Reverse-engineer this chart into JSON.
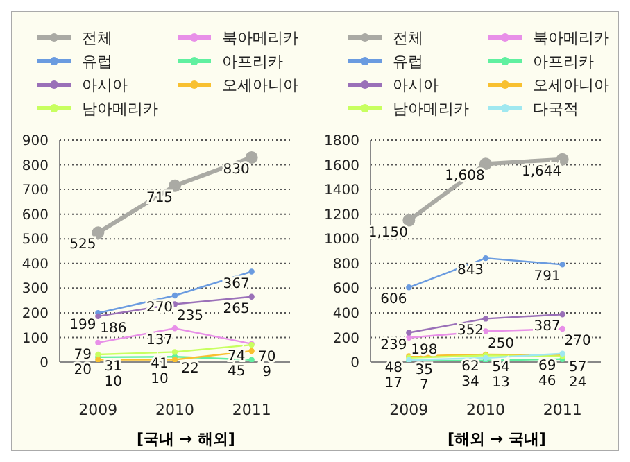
{
  "chart_data": [
    {
      "type": "line",
      "xlabel": "[국내 → 해외]",
      "categories": [
        "2009",
        "2010",
        "2011"
      ],
      "ylim": [
        0,
        900
      ],
      "yticks": [
        0,
        100,
        200,
        300,
        400,
        500,
        600,
        700,
        800,
        900
      ],
      "grid": "y",
      "legend": "top",
      "marker": "circle",
      "line_style": "solid",
      "data_labels": true,
      "series": [
        {
          "name": "전체",
          "color": "#aaaaa4",
          "values": [
            525,
            715,
            830
          ]
        },
        {
          "name": "북아메리카",
          "color": "#e890e8",
          "values": [
            79,
            137,
            74
          ]
        },
        {
          "name": "유럽",
          "color": "#6a9be0",
          "values": [
            199,
            270,
            367
          ]
        },
        {
          "name": "아프리카",
          "color": "#60f0a0",
          "values": [
            20,
            22,
            9
          ]
        },
        {
          "name": "아시아",
          "color": "#9a70b8",
          "values": [
            186,
            235,
            265
          ]
        },
        {
          "name": "오세아니아",
          "color": "#f8c030",
          "values": [
            10,
            10,
            45
          ]
        },
        {
          "name": "남아메리카",
          "color": "#c8ff60",
          "values": [
            31,
            41,
            70
          ]
        }
      ]
    },
    {
      "type": "line",
      "xlabel": "[해외 → 국내]",
      "categories": [
        "2009",
        "2010",
        "2011"
      ],
      "ylim": [
        0,
        1800
      ],
      "yticks": [
        0,
        200,
        400,
        600,
        800,
        1000,
        1200,
        1400,
        1600,
        1800
      ],
      "grid": "y",
      "legend": "top",
      "marker": "circle",
      "line_style": "solid",
      "series": [
        {
          "name": "전체",
          "color": "#aaaaa4",
          "values": [
            1150,
            1608,
            1644
          ],
          "value_labels": [
            "1,150",
            "1,608",
            "1,644"
          ]
        },
        {
          "name": "북아메리카",
          "color": "#e890e8",
          "values": [
            198,
            250,
            270
          ],
          "value_labels": [
            "198",
            "250",
            "270"
          ]
        },
        {
          "name": "유럽",
          "color": "#6a9be0",
          "values": [
            606,
            843,
            791
          ],
          "value_labels": [
            "606",
            "843",
            "791"
          ]
        },
        {
          "name": "아프리카",
          "color": "#60f0a0",
          "values": [
            7,
            13,
            24
          ],
          "value_labels": [
            "7",
            "13",
            "24"
          ]
        },
        {
          "name": "아시아",
          "color": "#9a70b8",
          "values": [
            239,
            352,
            387
          ],
          "value_labels": [
            "239",
            "352",
            "387"
          ]
        },
        {
          "name": "오세아니아",
          "color": "#f8c030",
          "values": [
            48,
            62,
            57
          ],
          "value_labels": [
            "48",
            "62",
            "57"
          ]
        },
        {
          "name": "남아메리카",
          "color": "#c8ff60",
          "values": [
            35,
            54,
            46
          ],
          "value_labels": [
            "35",
            "54",
            "46"
          ]
        },
        {
          "name": "다국적",
          "color": "#a0e8f0",
          "values": [
            17,
            34,
            69
          ],
          "value_labels": [
            "17",
            "34",
            "69"
          ]
        }
      ]
    }
  ]
}
